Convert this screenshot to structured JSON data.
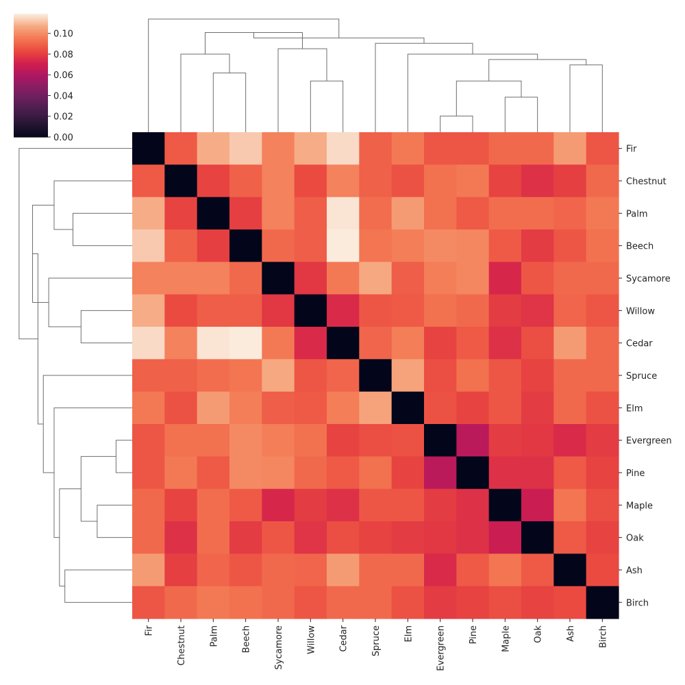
{
  "chart_data": {
    "type": "heatmap",
    "title": "",
    "subtitle": "",
    "xlabel": "",
    "ylabel": "",
    "colormap": "rocket",
    "vmin": 0.0,
    "vmax": 0.119,
    "colorbar": {
      "ticks": [
        "0.00",
        "0.02",
        "0.04",
        "0.06",
        "0.08",
        "0.10"
      ],
      "tick_values": [
        0.0,
        0.02,
        0.04,
        0.06,
        0.08,
        0.1
      ],
      "placement": "top-left"
    },
    "row_labels": [
      "Fir",
      "Chestnut",
      "Palm",
      "Beech",
      "Sycamore",
      "Willow",
      "Cedar",
      "Spruce",
      "Elm",
      "Evergreen",
      "Pine",
      "Maple",
      "Oak",
      "Ash",
      "Birch"
    ],
    "col_labels": [
      "Fir",
      "Chestnut",
      "Palm",
      "Beech",
      "Sycamore",
      "Willow",
      "Cedar",
      "Spruce",
      "Elm",
      "Evergreen",
      "Pine",
      "Maple",
      "Oak",
      "Ash",
      "Birch"
    ],
    "values": [
      [
        0.0,
        0.088,
        0.108,
        0.113,
        0.098,
        0.108,
        0.116,
        0.09,
        0.096,
        0.087,
        0.087,
        0.092,
        0.092,
        0.104,
        0.087
      ],
      [
        0.088,
        0.0,
        0.082,
        0.09,
        0.098,
        0.084,
        0.098,
        0.09,
        0.086,
        0.094,
        0.096,
        0.082,
        0.077,
        0.081,
        0.092
      ],
      [
        0.108,
        0.082,
        0.0,
        0.081,
        0.098,
        0.089,
        0.118,
        0.093,
        0.104,
        0.094,
        0.088,
        0.093,
        0.093,
        0.091,
        0.096
      ],
      [
        0.113,
        0.09,
        0.081,
        0.0,
        0.092,
        0.089,
        0.119,
        0.095,
        0.097,
        0.1,
        0.099,
        0.088,
        0.08,
        0.087,
        0.094
      ],
      [
        0.098,
        0.098,
        0.098,
        0.092,
        0.0,
        0.079,
        0.096,
        0.107,
        0.089,
        0.097,
        0.099,
        0.074,
        0.087,
        0.092,
        0.092
      ],
      [
        0.108,
        0.084,
        0.089,
        0.089,
        0.079,
        0.0,
        0.075,
        0.087,
        0.088,
        0.094,
        0.092,
        0.08,
        0.078,
        0.091,
        0.087
      ],
      [
        0.116,
        0.098,
        0.118,
        0.119,
        0.096,
        0.075,
        0.0,
        0.091,
        0.097,
        0.082,
        0.088,
        0.077,
        0.085,
        0.104,
        0.092
      ],
      [
        0.09,
        0.09,
        0.093,
        0.095,
        0.107,
        0.087,
        0.091,
        0.0,
        0.106,
        0.085,
        0.094,
        0.087,
        0.082,
        0.092,
        0.092
      ],
      [
        0.096,
        0.086,
        0.104,
        0.097,
        0.089,
        0.088,
        0.097,
        0.106,
        0.0,
        0.086,
        0.082,
        0.087,
        0.08,
        0.092,
        0.086
      ],
      [
        0.087,
        0.094,
        0.094,
        0.1,
        0.097,
        0.094,
        0.082,
        0.085,
        0.086,
        0.0,
        0.064,
        0.08,
        0.079,
        0.075,
        0.08
      ],
      [
        0.087,
        0.096,
        0.088,
        0.1,
        0.099,
        0.092,
        0.088,
        0.094,
        0.082,
        0.064,
        0.0,
        0.077,
        0.077,
        0.088,
        0.082
      ],
      [
        0.092,
        0.082,
        0.093,
        0.088,
        0.074,
        0.08,
        0.077,
        0.087,
        0.087,
        0.08,
        0.077,
        0.0,
        0.069,
        0.095,
        0.085
      ],
      [
        0.092,
        0.077,
        0.093,
        0.08,
        0.087,
        0.078,
        0.085,
        0.082,
        0.08,
        0.079,
        0.077,
        0.069,
        0.0,
        0.088,
        0.082
      ],
      [
        0.104,
        0.081,
        0.091,
        0.087,
        0.092,
        0.091,
        0.104,
        0.092,
        0.092,
        0.075,
        0.088,
        0.095,
        0.088,
        0.0,
        0.084
      ],
      [
        0.087,
        0.092,
        0.096,
        0.094,
        0.092,
        0.087,
        0.092,
        0.092,
        0.086,
        0.08,
        0.082,
        0.085,
        0.082,
        0.084,
        0.0
      ]
    ],
    "dendrogram": {
      "merges": [
        {
          "a": "Palm",
          "b": "Beech",
          "height": 0.62
        },
        {
          "a": "Willow",
          "b": "Cedar",
          "height": 0.59
        },
        {
          "a": "Evergreen",
          "b": "Pine",
          "height": 0.46
        },
        {
          "a": "Maple",
          "b": "Oak",
          "height": 0.53
        },
        {
          "a": "Ash",
          "b": "Birch",
          "height": 0.65
        },
        {
          "a": "Chestnut",
          "b": "Palm+Beech",
          "height": 0.69
        },
        {
          "a": "Sycamore",
          "b": "Willow+Cedar",
          "height": 0.71
        },
        {
          "a": "Evergreen+Pine",
          "b": "Maple+Oak",
          "height": 0.59
        },
        {
          "a": "Evergreen..Oak",
          "b": "Ash+Birch",
          "height": 0.67
        },
        {
          "a": "Elm",
          "b": "Evergreen..Birch",
          "height": 0.69
        },
        {
          "a": "Spruce",
          "b": "Elm..Birch",
          "height": 0.73
        },
        {
          "a": "Chestnut..Beech",
          "b": "Sycamore..Cedar",
          "height": 0.77
        },
        {
          "a": "Chestnut..Cedar",
          "b": "Spruce..Birch",
          "height": 0.75
        },
        {
          "a": "Fir",
          "b": "Chestnut..Birch",
          "height": 0.82
        }
      ]
    }
  }
}
